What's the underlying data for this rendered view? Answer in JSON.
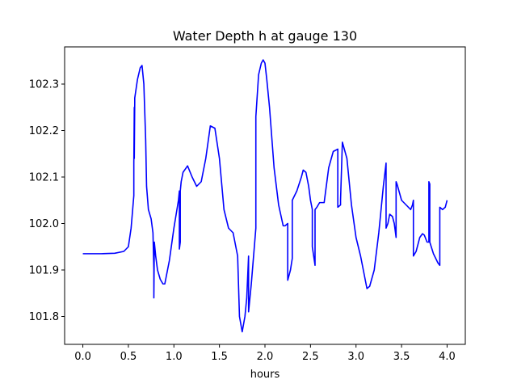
{
  "chart_data": {
    "type": "line",
    "title": "Water Depth h at gauge 130",
    "xlabel": "hours",
    "ylabel": "",
    "xlim": [
      -0.2,
      4.2
    ],
    "ylim": [
      101.74,
      102.38
    ],
    "xticks": [
      0.0,
      0.5,
      1.0,
      1.5,
      2.0,
      2.5,
      3.0,
      3.5,
      4.0
    ],
    "xtick_labels": [
      "0.0",
      "0.5",
      "1.0",
      "1.5",
      "2.0",
      "2.5",
      "3.0",
      "3.5",
      "4.0"
    ],
    "yticks": [
      101.8,
      101.9,
      102.0,
      102.1,
      102.2,
      102.3
    ],
    "ytick_labels": [
      "101.8",
      "101.9",
      "102.0",
      "102.1",
      "102.2",
      "102.3"
    ],
    "grid": false,
    "series": [
      {
        "color": "#0000ff",
        "x": [
          0.0,
          0.2,
          0.35,
          0.45,
          0.5,
          0.53,
          0.56,
          0.56,
          0.565,
          0.565,
          0.57,
          0.57,
          0.6,
          0.63,
          0.65,
          0.67,
          0.69,
          0.7,
          0.72,
          0.75,
          0.77,
          0.78,
          0.78,
          0.785,
          0.8,
          0.82,
          0.85,
          0.88,
          0.9,
          0.95,
          1.0,
          1.05,
          1.06,
          1.06,
          1.07,
          1.07,
          1.08,
          1.1,
          1.15,
          1.2,
          1.25,
          1.3,
          1.35,
          1.4,
          1.45,
          1.5,
          1.55,
          1.6,
          1.65,
          1.7,
          1.72,
          1.75,
          1.78,
          1.8,
          1.82,
          1.82,
          1.85,
          1.9,
          1.9,
          1.93,
          1.96,
          1.98,
          2.0,
          2.02,
          2.05,
          2.1,
          2.15,
          2.2,
          2.22,
          2.25,
          2.25,
          2.28,
          2.3,
          2.3,
          2.35,
          2.4,
          2.42,
          2.45,
          2.48,
          2.5,
          2.52,
          2.52,
          2.55,
          2.55,
          2.57,
          2.6,
          2.65,
          2.7,
          2.75,
          2.8,
          2.8,
          2.83,
          2.83,
          2.85,
          2.9,
          2.95,
          3.0,
          3.05,
          3.08,
          3.12,
          3.15,
          3.2,
          3.25,
          3.3,
          3.33,
          3.33,
          3.35,
          3.37,
          3.4,
          3.42,
          3.44,
          3.44,
          3.45,
          3.5,
          3.55,
          3.6,
          3.62,
          3.63,
          3.63,
          3.66,
          3.7,
          3.73,
          3.75,
          3.78,
          3.8,
          3.8,
          3.81,
          3.81,
          3.85,
          3.9,
          3.92,
          3.92,
          3.95,
          3.98,
          4.0
        ],
        "y": [
          101.935,
          101.935,
          101.936,
          101.94,
          101.95,
          101.99,
          102.06,
          102.13,
          102.25,
          102.14,
          102.26,
          102.27,
          102.31,
          102.335,
          102.34,
          102.3,
          102.18,
          102.08,
          102.03,
          102.01,
          101.98,
          101.9,
          101.84,
          101.96,
          101.93,
          101.9,
          101.88,
          101.87,
          101.87,
          101.92,
          101.99,
          102.05,
          102.07,
          101.945,
          101.96,
          102.07,
          102.09,
          102.11,
          102.124,
          102.1,
          102.08,
          102.09,
          102.14,
          102.21,
          102.205,
          102.14,
          102.03,
          101.99,
          101.98,
          101.93,
          101.8,
          101.767,
          101.8,
          101.84,
          101.93,
          101.81,
          101.87,
          101.99,
          102.23,
          102.32,
          102.345,
          102.352,
          102.345,
          102.31,
          102.25,
          102.12,
          102.04,
          101.995,
          101.995,
          102.0,
          101.878,
          101.9,
          101.925,
          102.05,
          102.07,
          102.1,
          102.115,
          102.11,
          102.08,
          102.05,
          102.03,
          101.95,
          101.91,
          102.03,
          102.035,
          102.045,
          102.045,
          102.12,
          102.155,
          102.16,
          102.035,
          102.04,
          102.05,
          102.175,
          102.14,
          102.04,
          101.97,
          101.93,
          101.9,
          101.86,
          101.865,
          101.9,
          101.98,
          102.08,
          102.13,
          101.99,
          102.0,
          102.02,
          102.015,
          102.0,
          101.97,
          102.09,
          102.085,
          102.05,
          102.04,
          102.03,
          102.04,
          102.05,
          101.93,
          101.94,
          101.97,
          101.978,
          101.975,
          101.96,
          101.96,
          102.09,
          102.085,
          101.96,
          101.935,
          101.915,
          101.91,
          102.035,
          102.03,
          102.035,
          102.05
        ]
      }
    ]
  }
}
